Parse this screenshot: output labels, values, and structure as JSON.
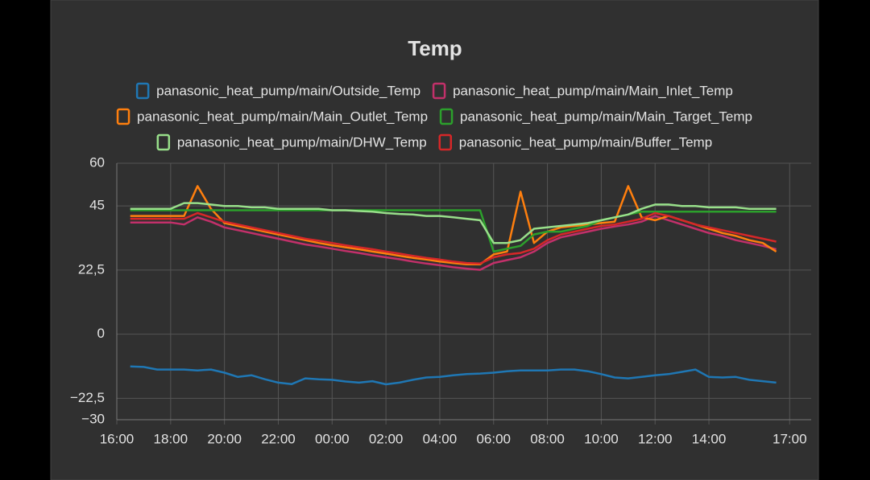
{
  "chart_data": {
    "type": "line",
    "title": "Temp",
    "x": [
      16.5,
      17,
      17.5,
      18,
      18.5,
      19,
      19.5,
      20,
      20.5,
      21,
      21.5,
      22,
      22.5,
      23,
      23.5,
      24,
      24.5,
      25,
      25.5,
      26,
      26.5,
      27,
      27.5,
      28,
      28.5,
      29,
      29.5,
      30,
      30.5,
      31,
      31.5,
      32,
      32.5,
      33,
      33.5,
      34,
      34.5,
      35,
      35.5,
      36,
      36.5,
      37,
      37.5,
      38,
      38.5,
      39,
      39.5,
      40,
      40.5
    ],
    "xlim": [
      16,
      41.8
    ],
    "xticks": [
      {
        "value": 16,
        "label": "16:00"
      },
      {
        "value": 18,
        "label": "18:00"
      },
      {
        "value": 20,
        "label": "20:00"
      },
      {
        "value": 22,
        "label": "22:00"
      },
      {
        "value": 24,
        "label": "00:00"
      },
      {
        "value": 26,
        "label": "02:00"
      },
      {
        "value": 28,
        "label": "04:00"
      },
      {
        "value": 30,
        "label": "06:00"
      },
      {
        "value": 32,
        "label": "08:00"
      },
      {
        "value": 34,
        "label": "10:00"
      },
      {
        "value": 36,
        "label": "12:00"
      },
      {
        "value": 38,
        "label": "14:00"
      },
      {
        "value": 41,
        "label": "17:00"
      }
    ],
    "ylim": [
      -30,
      60
    ],
    "yticks": [
      60,
      45,
      {
        "value": 22.5,
        "label": "22,5"
      },
      0,
      {
        "value": -22.5,
        "label": "−22,5"
      },
      {
        "value": -30,
        "label": "−30"
      }
    ],
    "grid": true,
    "series": [
      {
        "name": "panasonic_heat_pump/main/Outside_Temp",
        "color": "#1f77b4",
        "values": [
          -11.3,
          -11.5,
          -12.4,
          -12.4,
          -12.4,
          -12.7,
          -12.4,
          -13.5,
          -15,
          -14.4,
          -15.8,
          -17,
          -17.5,
          -15.5,
          -15.8,
          -16,
          -16.6,
          -17,
          -16.5,
          -17.6,
          -17,
          -16,
          -15.2,
          -15,
          -14.4,
          -14,
          -13.8,
          -13.5,
          -13,
          -12.7,
          -12.7,
          -12.7,
          -12.4,
          -12.4,
          -13,
          -14,
          -15.2,
          -15.5,
          -15,
          -14.4,
          -14,
          -13.2,
          -12.4,
          -15,
          -15.2,
          -15,
          -16,
          -16.5,
          -17
        ]
      },
      {
        "name": "panasonic_heat_pump/main/Main_Inlet_Temp",
        "color": "#c2306a",
        "values": [
          39.2,
          39.2,
          39.2,
          39.2,
          38.5,
          41,
          39.5,
          37.5,
          36.5,
          35.5,
          34.5,
          33.5,
          32.5,
          31.5,
          30.8,
          30,
          29.2,
          28.5,
          27.7,
          27,
          26.3,
          25.5,
          24.8,
          24.2,
          23.5,
          23,
          22.6,
          25,
          26,
          27,
          29,
          32,
          34,
          35,
          36,
          37,
          37.8,
          38.5,
          39.5,
          41.5,
          40,
          38.5,
          37,
          35.5,
          34.5,
          33,
          32,
          31,
          29.8
        ]
      },
      {
        "name": "panasonic_heat_pump/main/Main_Outlet_Temp",
        "color": "#ff7f0e",
        "values": [
          41.5,
          41.5,
          41.5,
          41.5,
          41.5,
          52,
          44,
          39,
          38,
          37,
          36,
          35,
          34,
          33,
          32,
          31.2,
          30.5,
          29.8,
          29,
          28.3,
          27.5,
          26.8,
          26.2,
          25.5,
          25,
          24.5,
          24.5,
          28,
          29,
          50,
          32,
          36,
          37.5,
          38,
          38.5,
          39,
          39.5,
          52,
          41,
          40,
          41.5,
          40,
          38.5,
          37,
          35.5,
          34.5,
          33,
          32,
          29
        ]
      },
      {
        "name": "panasonic_heat_pump/main/Main_Target_Temp",
        "color": "#2ca02c",
        "values": [
          43.5,
          43.5,
          43.5,
          43.5,
          43.5,
          43.5,
          43.5,
          43.5,
          43.5,
          43.5,
          43.5,
          43.5,
          43.5,
          43.5,
          43.5,
          43.5,
          43.5,
          43.5,
          43.5,
          43.5,
          43.5,
          43.5,
          43.5,
          43.5,
          43.5,
          43.5,
          43.5,
          29,
          30,
          31,
          35,
          36,
          36,
          37,
          38,
          40,
          41,
          42,
          43,
          43,
          43,
          43,
          43,
          43,
          43,
          43,
          43,
          43,
          43
        ]
      },
      {
        "name": "panasonic_heat_pump/main/DHW_Temp",
        "color": "#98df8a",
        "values": [
          44,
          44,
          44,
          44,
          46,
          46,
          45.5,
          45,
          45,
          44.5,
          44.5,
          44,
          44,
          44,
          44,
          43.5,
          43.5,
          43.2,
          43,
          42.5,
          42.2,
          42,
          41.5,
          41.5,
          41,
          40.5,
          40,
          32,
          32,
          33,
          37,
          37.5,
          38,
          38.5,
          39,
          40,
          41,
          42,
          44,
          45.5,
          45.5,
          45,
          45,
          44.5,
          44.5,
          44.5,
          44,
          44,
          44
        ]
      },
      {
        "name": "panasonic_heat_pump/main/Buffer_Temp",
        "color": "#d62728",
        "values": [
          40.5,
          40.5,
          40.5,
          40.5,
          40.5,
          42.5,
          41,
          39.5,
          38.5,
          37.5,
          36.5,
          35.5,
          34.5,
          33.5,
          32.8,
          32,
          31.2,
          30.5,
          29.8,
          29,
          28.3,
          27.5,
          26.8,
          26.2,
          25.5,
          25,
          24.8,
          27,
          28,
          28.5,
          30,
          33,
          35,
          36,
          37,
          38,
          38.5,
          39.5,
          40.5,
          42.5,
          41.5,
          40,
          38.5,
          37.5,
          36.5,
          35.5,
          34.5,
          33.5,
          32.5
        ]
      }
    ]
  }
}
